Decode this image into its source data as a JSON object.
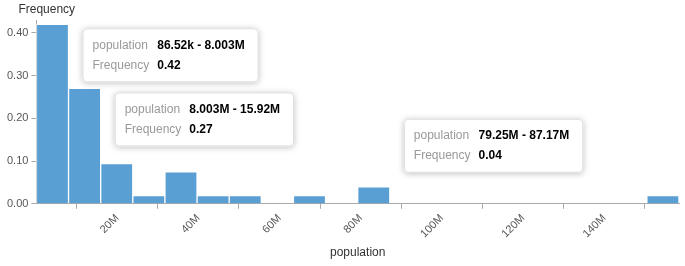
{
  "chart_data": {
    "type": "histogram",
    "x_label": "population",
    "y_label": "Frequency",
    "bins": [
      86520,
      8003000,
      15919480,
      23835960,
      31752440,
      39668920,
      47585400,
      55501880,
      63418360,
      71334840,
      79251320,
      87167800,
      95084280,
      103000760,
      110917240,
      118833720,
      126750200,
      134666680,
      142583160,
      150499640,
      158416120
    ],
    "values": [
      0.42,
      0.27,
      0.094,
      0.019,
      0.075,
      0.019,
      0.019,
      0,
      0.019,
      0,
      0.04,
      0,
      0,
      0,
      0,
      0,
      0,
      0,
      0,
      0.019
    ],
    "color": "#5a9fd4",
    "xlim": [
      86520,
      158416120
    ],
    "xticks": [
      {
        "value": 20000000,
        "label": "20M"
      },
      {
        "value": 40000000,
        "label": "40M"
      },
      {
        "value": 60000000,
        "label": "60M"
      },
      {
        "value": 80000000,
        "label": "80M"
      },
      {
        "value": 100000000,
        "label": "100M"
      },
      {
        "value": 120000000,
        "label": "120M"
      },
      {
        "value": 140000000,
        "label": "140M"
      }
    ],
    "ylim": [
      0,
      0.43
    ],
    "yticks": [
      {
        "value": 0,
        "label": "0.00"
      },
      {
        "value": 0.1,
        "label": "0.10"
      },
      {
        "value": 0.2,
        "label": "0.20"
      },
      {
        "value": 0.3,
        "label": "0.30"
      },
      {
        "value": 0.4,
        "label": "0.40"
      }
    ],
    "grid": false,
    "annotations": [
      {
        "x": [
          86520,
          8003000
        ],
        "label": "86.52k - 8.003M",
        "y": 0.42
      },
      {
        "x": [
          8003000,
          15919480
        ],
        "label": "8.003M - 15.92M",
        "y": 0.27
      },
      {
        "x": [
          79251320,
          87167800
        ],
        "label": "79.25M - 87.17M",
        "y": 0.04
      }
    ]
  }
}
